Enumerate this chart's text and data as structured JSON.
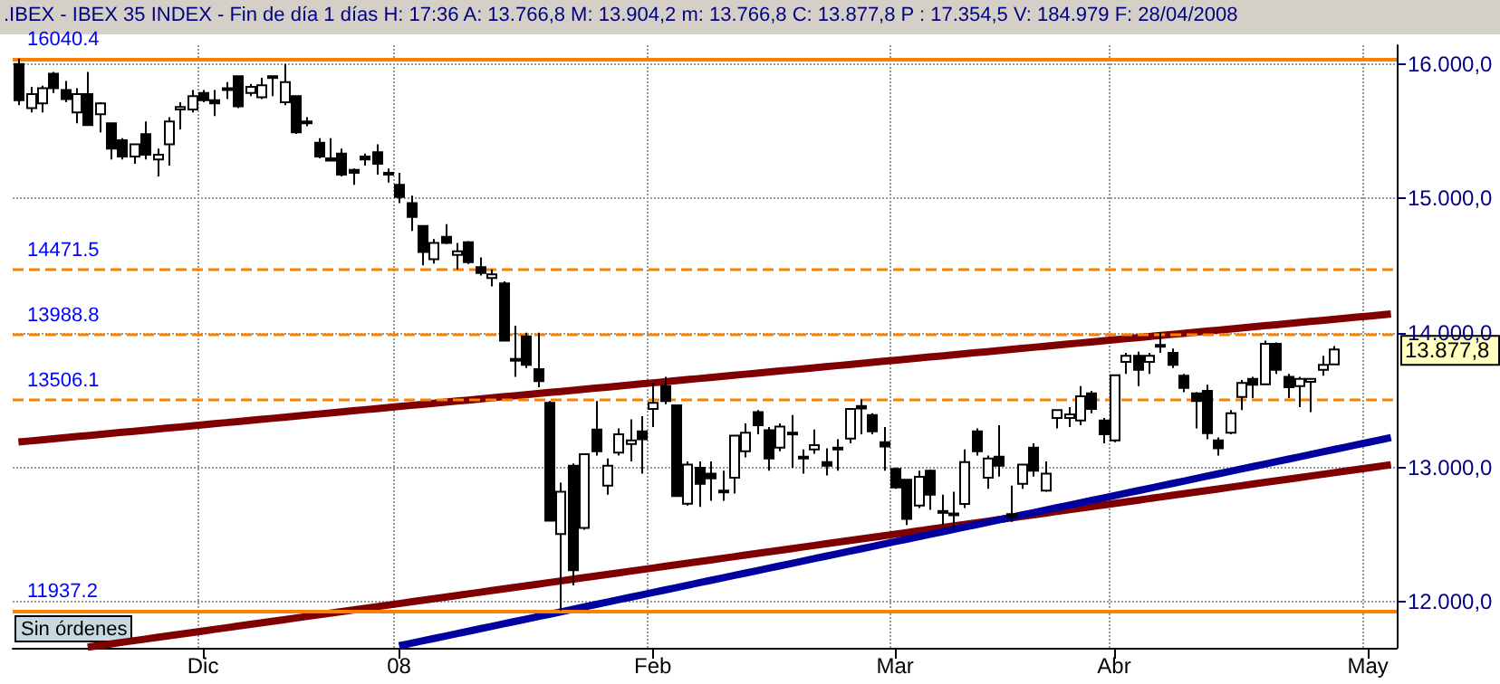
{
  "chart_data": {
    "type": "candlestick",
    "title": ".IBEX - IBEX 35 INDEX - Fin de día 1 días H: 17:36 A: 13.766,8 M: 13.904,2 m: 13.766,8 C: 13.877,8 P : 17.354,5 V: 184.979 F: 28/04/2008",
    "categories": [
      null,
      null,
      null,
      null,
      null,
      null,
      null,
      null,
      null,
      null,
      null,
      null,
      null,
      null,
      null,
      null,
      "Dic",
      null,
      null,
      null,
      null,
      null,
      null,
      null,
      null,
      null,
      null,
      null,
      null,
      null,
      null,
      null,
      null,
      "08",
      null,
      null,
      null,
      null,
      null,
      null,
      null,
      null,
      null,
      null,
      null,
      null,
      null,
      null,
      null,
      null,
      null,
      null,
      null,
      null,
      null,
      "Feb",
      null,
      null,
      null,
      null,
      null,
      null,
      null,
      null,
      null,
      null,
      null,
      null,
      null,
      null,
      null,
      null,
      null,
      null,
      null,
      null,
      "Mar",
      null,
      null,
      null,
      null,
      null,
      null,
      null,
      null,
      null,
      null,
      null,
      null,
      null,
      null,
      null,
      null,
      null,
      null,
      "Abr",
      null,
      null,
      null,
      null,
      null,
      null,
      null,
      null,
      null,
      null,
      null,
      null,
      null,
      null,
      null,
      null,
      null,
      null,
      null,
      null,
      null,
      "May",
      null,
      null
    ],
    "ohlc": [
      [
        16000,
        16040.4,
        15695,
        15731
      ],
      [
        15672,
        15830,
        15641,
        15776
      ],
      [
        15708,
        15839,
        15641,
        15821
      ],
      [
        15928,
        15942,
        15785,
        15821
      ],
      [
        15807,
        15875,
        15717,
        15740
      ],
      [
        15641,
        15821,
        15560,
        15776
      ],
      [
        15776,
        15942,
        15547,
        15547
      ],
      [
        15627,
        15717,
        15493,
        15708
      ],
      [
        15560,
        15560,
        15290,
        15371
      ],
      [
        15434,
        15448,
        15290,
        15313
      ],
      [
        15313,
        15403,
        15259,
        15403
      ],
      [
        15479,
        15574,
        15290,
        15326
      ],
      [
        15290,
        15371,
        15165,
        15326
      ],
      [
        15403,
        15605,
        15246,
        15574
      ],
      [
        15663,
        15717,
        15515,
        15681
      ],
      [
        15663,
        15807,
        15641,
        15762
      ],
      [
        15785,
        15807,
        15717,
        15731
      ],
      [
        15731,
        15807,
        15614,
        15708
      ],
      [
        15821,
        15866,
        15740,
        15807
      ],
      [
        15910,
        15910,
        15672,
        15686
      ],
      [
        15785,
        15852,
        15762,
        15830
      ],
      [
        15753,
        15897,
        15740,
        15843
      ],
      [
        15910,
        15910,
        15762,
        15897
      ],
      [
        15717,
        16000,
        15695,
        15866
      ],
      [
        15762,
        15762,
        15480,
        15493
      ],
      [
        15574,
        15605,
        15538,
        15560
      ],
      [
        15416,
        15448,
        15300,
        15313
      ],
      [
        15300,
        15448,
        15282,
        15282
      ],
      [
        15335,
        15371,
        15165,
        15178
      ],
      [
        15214,
        15223,
        15102,
        15192
      ],
      [
        15313,
        15335,
        15246,
        15290
      ],
      [
        15344,
        15403,
        15178,
        15259
      ],
      [
        15192,
        15223,
        15120,
        15178
      ],
      [
        15102,
        15192,
        14967,
        15012
      ],
      [
        14967,
        15021,
        14760,
        14864
      ],
      [
        14796,
        14796,
        14504,
        14603
      ],
      [
        14549,
        14698,
        14518,
        14671
      ],
      [
        14716,
        14810,
        14662,
        14671
      ],
      [
        14581,
        14671,
        14473,
        14608
      ],
      [
        14675,
        14684,
        14513,
        14527
      ],
      [
        14491,
        14563,
        14428,
        14446
      ],
      [
        14410,
        14473,
        14347,
        14437
      ],
      [
        14370,
        14385,
        13943,
        13943
      ],
      [
        13808,
        14055,
        13674,
        13800
      ],
      [
        13975,
        14002,
        13741,
        13764
      ],
      [
        13732,
        14002,
        13597,
        13642
      ],
      [
        13481,
        13494,
        12605,
        12605
      ],
      [
        12506,
        12887,
        11937.2,
        12820
      ],
      [
        13013,
        13031,
        12124,
        12236
      ],
      [
        12551,
        13099,
        12537,
        13099
      ],
      [
        13283,
        13494,
        13090,
        13121
      ],
      [
        12865,
        13067,
        12798,
        13013
      ],
      [
        13112,
        13292,
        13090,
        13247
      ],
      [
        13175,
        13359,
        13045,
        13202
      ],
      [
        13269,
        13382,
        12955,
        13211
      ],
      [
        13436,
        13629,
        13301,
        13481
      ],
      [
        13606,
        13674,
        13472,
        13494
      ],
      [
        13463,
        13463,
        12789,
        12789
      ],
      [
        12731,
        13045,
        12717,
        13022
      ],
      [
        12999,
        13045,
        12708,
        12879
      ],
      [
        12955,
        13045,
        12753,
        12919
      ],
      [
        12829,
        12977,
        12753,
        12816
      ],
      [
        12924,
        13238,
        12807,
        13238
      ],
      [
        13121,
        13328,
        13076,
        13260
      ],
      [
        13413,
        13427,
        13247,
        13314
      ],
      [
        13278,
        13301,
        12977,
        13067
      ],
      [
        13148,
        13328,
        13121,
        13305
      ],
      [
        13260,
        13391,
        12999,
        13247
      ],
      [
        13081,
        13135,
        12955,
        13067
      ],
      [
        13135,
        13283,
        13103,
        13166
      ],
      [
        13040,
        13144,
        12942,
        13013
      ],
      [
        13148,
        13211,
        12977,
        13135
      ],
      [
        13216,
        13436,
        13180,
        13436
      ],
      [
        13458,
        13507,
        13247,
        13440
      ],
      [
        13391,
        13404,
        13247,
        13269
      ],
      [
        13189,
        13301,
        12977,
        13157
      ],
      [
        12991,
        13000,
        12843,
        12852
      ],
      [
        12910,
        12910,
        12573,
        12618
      ],
      [
        12717,
        12977,
        12699,
        12932
      ],
      [
        12977,
        12986,
        12685,
        12798
      ],
      [
        12677,
        12798,
        12573,
        12672
      ],
      [
        12659,
        12820,
        12551,
        12650
      ],
      [
        12730,
        13135,
        12699,
        13040
      ],
      [
        13269,
        13292,
        13090,
        13121
      ],
      [
        12924,
        13090,
        12843,
        13067
      ],
      [
        13081,
        13314,
        12933,
        13013
      ],
      [
        12654,
        12865,
        12596,
        12632
      ],
      [
        12879,
        13022,
        12843,
        13022
      ],
      [
        13148,
        13180,
        12933,
        12977
      ],
      [
        12829,
        13045,
        12820,
        12955
      ],
      [
        13368,
        13427,
        13292,
        13427
      ],
      [
        13368,
        13449,
        13301,
        13395
      ],
      [
        13350,
        13606,
        13314,
        13530
      ],
      [
        13552,
        13570,
        13404,
        13436
      ],
      [
        13350,
        13368,
        13180,
        13247
      ],
      [
        13202,
        13687,
        13189,
        13687
      ],
      [
        13786,
        13853,
        13696,
        13831
      ],
      [
        13831,
        13862,
        13606,
        13727
      ],
      [
        13786,
        13853,
        13696,
        13831
      ],
      [
        13912,
        14002,
        13853,
        13905
      ],
      [
        13853,
        13885,
        13741,
        13764
      ],
      [
        13683,
        13696,
        13561,
        13593
      ],
      [
        13552,
        13561,
        13292,
        13494
      ],
      [
        13570,
        13615,
        13211,
        13256
      ],
      [
        13202,
        13224,
        13090,
        13144
      ],
      [
        13260,
        13427,
        13247,
        13404
      ],
      [
        13525,
        13651,
        13427,
        13629
      ],
      [
        13660,
        13674,
        13516,
        13615
      ],
      [
        13620,
        13943,
        13615,
        13921
      ],
      [
        13921,
        13930,
        13696,
        13727
      ],
      [
        13674,
        13696,
        13516,
        13597
      ],
      [
        13606,
        13674,
        13449,
        13660
      ],
      [
        13638,
        13660,
        13413,
        13660
      ],
      [
        13727,
        13831,
        13683,
        13764
      ],
      [
        13766.8,
        13904.2,
        13766.8,
        13877.8
      ],
      null,
      null,
      null,
      null,
      null
    ],
    "series": [
      {
        "type": "line",
        "color": "#800000",
        "values": [
          13190,
          13198,
          13206,
          13214,
          13222,
          13230,
          13238,
          13246,
          13254,
          13262,
          13270,
          13278,
          13286,
          13294,
          13302,
          13310,
          13318,
          13326,
          13334,
          13342,
          13350,
          13358,
          13366,
          13374,
          13382,
          13390,
          13398,
          13406,
          13414,
          13422,
          13430,
          13438,
          13446,
          13454,
          13462,
          13470,
          13478,
          13486,
          13494,
          13502,
          13510,
          13518,
          13526,
          13534,
          13542,
          13550,
          13558,
          13566,
          13574,
          13582,
          13590,
          13598,
          13606,
          13614,
          13622,
          13630,
          13638,
          13646,
          13654,
          13662,
          13670,
          13678,
          13686,
          13694,
          13702,
          13710,
          13718,
          13726,
          13734,
          13742,
          13750,
          13758,
          13766,
          13774,
          13782,
          13790,
          13798,
          13806,
          13814,
          13822,
          13830,
          13838,
          13846,
          13854,
          13862,
          13870,
          13878,
          13886,
          13894,
          13902,
          13910,
          13918,
          13926,
          13934,
          13942,
          13950,
          13958,
          13966,
          13974,
          13982,
          13990,
          13998,
          14006,
          14014,
          14022,
          14030,
          14038,
          14046,
          14054,
          14062,
          14070,
          14078,
          14086,
          14094,
          14102,
          14110,
          14118,
          14126,
          14134,
          14142
        ]
      },
      {
        "type": "line",
        "color": "#800000",
        "values": [
          null,
          null,
          null,
          null,
          null,
          null,
          11665,
          11677,
          11689,
          11701,
          11713,
          11725,
          11737,
          11749,
          11761,
          11773,
          11785,
          11797,
          11809,
          11821,
          11833,
          11845,
          11857,
          11869,
          11881,
          11893,
          11905,
          11917,
          11929,
          11941,
          11953,
          11965,
          11977,
          11989,
          12001,
          12013,
          12025,
          12037,
          12049,
          12061,
          12073,
          12085,
          12097,
          12109,
          12121,
          12133,
          12145,
          12157,
          12169,
          12181,
          12193,
          12205,
          12217,
          12229,
          12241,
          12253,
          12265,
          12277,
          12289,
          12301,
          12313,
          12325,
          12337,
          12349,
          12361,
          12373,
          12385,
          12397,
          12409,
          12421,
          12433,
          12445,
          12457,
          12469,
          12481,
          12493,
          12505,
          12517,
          12529,
          12541,
          12553,
          12565,
          12577,
          12589,
          12601,
          12613,
          12625,
          12637,
          12649,
          12661,
          12673,
          12685,
          12697,
          12709,
          12721,
          12733,
          12745,
          12757,
          12769,
          12781,
          12793,
          12805,
          12817,
          12829,
          12841,
          12853,
          12865,
          12877,
          12889,
          12901,
          12913,
          12925,
          12937,
          12949,
          12961,
          12973,
          12985,
          12997,
          13009,
          13021
        ]
      },
      {
        "type": "line",
        "color": "#0000a0",
        "values": [
          null,
          null,
          null,
          null,
          null,
          null,
          null,
          null,
          null,
          null,
          null,
          null,
          null,
          null,
          null,
          null,
          null,
          null,
          null,
          null,
          null,
          null,
          null,
          null,
          null,
          null,
          null,
          null,
          null,
          null,
          null,
          null,
          null,
          11675,
          11693,
          11711,
          11729,
          11747,
          11765,
          11783,
          11801,
          11819,
          11837,
          11855,
          11873,
          11891,
          11909,
          11927,
          11945,
          11963,
          11981,
          11999,
          12017,
          12035,
          12053,
          12071,
          12089,
          12107,
          12125,
          12143,
          12161,
          12179,
          12197,
          12215,
          12233,
          12251,
          12269,
          12287,
          12305,
          12323,
          12341,
          12359,
          12377,
          12395,
          12413,
          12431,
          12449,
          12467,
          12485,
          12503,
          12521,
          12539,
          12557,
          12575,
          12593,
          12611,
          12629,
          12647,
          12665,
          12683,
          12701,
          12719,
          12737,
          12755,
          12773,
          12791,
          12809,
          12827,
          12845,
          12863,
          12881,
          12899,
          12917,
          12935,
          12953,
          12971,
          12989,
          13007,
          13025,
          13043,
          13061,
          13079,
          13097,
          13115,
          13133,
          13151,
          13169,
          13187,
          13205,
          13223
        ]
      }
    ],
    "ylim": [
      11660,
      16140
    ],
    "yticks": [
      {
        "value": 12000,
        "label": "12.000,0"
      },
      {
        "value": 13000,
        "label": "13.000,0"
      },
      {
        "value": 14000,
        "label": "14.000,0"
      },
      {
        "value": 15000,
        "label": "15.000,0"
      },
      {
        "value": 16000,
        "label": "16.000,0"
      }
    ],
    "ref_lines": [
      {
        "axis": "y",
        "value": 16040.4,
        "label": "16040.4",
        "color": "#ff8000",
        "line_style": "solid"
      },
      {
        "axis": "y",
        "value": 14471.5,
        "label": "14471.5",
        "color": "#ff8000",
        "line_style": "dashed"
      },
      {
        "axis": "y",
        "value": 13988.8,
        "label": "13988.8",
        "color": "#ff8000",
        "line_style": "dashed"
      },
      {
        "axis": "y",
        "value": 13506.1,
        "label": "13506.1",
        "color": "#ff8000",
        "line_style": "dashed"
      },
      {
        "axis": "y",
        "value": 11937.2,
        "label": "11937.2",
        "color": "#ff8000",
        "line_style": "solid"
      }
    ],
    "annotations": [
      "13.877,8",
      "Sin órdenes"
    ],
    "grid": true
  }
}
